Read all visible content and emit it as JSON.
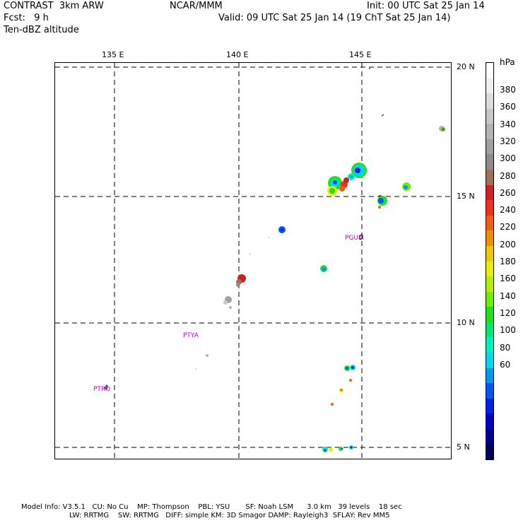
{
  "header": {
    "model": "CONTRAST  3km ARW",
    "org": "NCAR/MMM",
    "init": "Init: 00 UTC Sat 25 Jan 14",
    "fcst": "Fcst:   9 h",
    "valid": "Valid: 09 UTC Sat 25 Jan 14 (19 ChT Sat 25 Jan 14)",
    "field": "Ten-dBZ altitude"
  },
  "map": {
    "lon_labels": [
      "135 E",
      "140 E",
      "145 E"
    ],
    "lat_labels": [
      "20 N",
      "15 N",
      "10 N",
      "5 N"
    ],
    "stations": [
      "PGUM",
      "PTYA",
      "PTRO"
    ]
  },
  "legend": {
    "unit": "hPa",
    "labels": [
      "380",
      "360",
      "340",
      "320",
      "300",
      "280",
      "260",
      "240",
      "220",
      "200",
      "180",
      "160",
      "140",
      "120",
      "100",
      "80",
      "60"
    ],
    "colors": [
      "#ffffff",
      "#f0f0f0",
      "#dcdcdc",
      "#c8c8c8",
      "#b4b4b4",
      "#a0a0a0",
      "#8c8c8c",
      "#a0705a",
      "#d02020",
      "#f03018",
      "#f06010",
      "#f09000",
      "#f0c800",
      "#e8f000",
      "#b0f000",
      "#70f000",
      "#20e020",
      "#00e870",
      "#00f0c0",
      "#00d8f0",
      "#0098f0",
      "#0058f0",
      "#0020f0",
      "#0000c8",
      "#000090",
      "#000058"
    ]
  },
  "footer": {
    "line1": "Model Info: V3.5.1   CU: No Cu    MP: Thompson    PBL: YSU       SF: Noah LSM      3.0 km   39 levels    18 sec",
    "line2": "LW: RRTMG    SW: RRTMG   DIFF: simple KM: 3D Smagor DAMP: Rayleigh3  SFLAY: Rev MM5"
  }
}
